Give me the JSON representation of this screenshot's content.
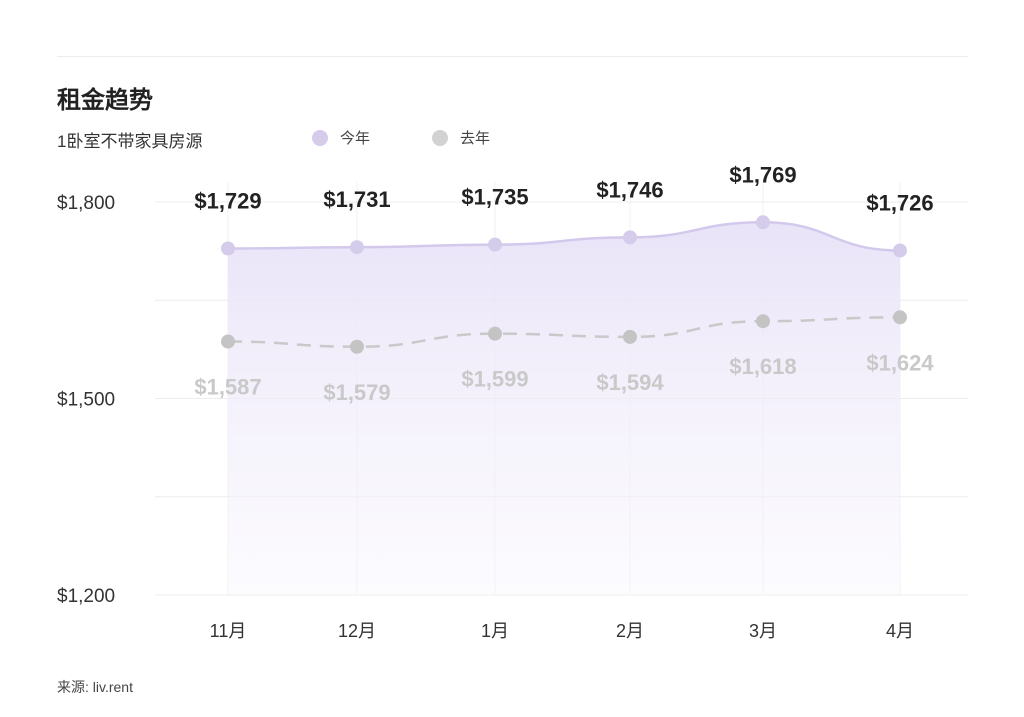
{
  "chart_data": {
    "type": "line",
    "title": "租金趋势",
    "subtitle": "1卧室不带家具房源",
    "categories": [
      "11月",
      "12月",
      "1月",
      "2月",
      "3月",
      "4月"
    ],
    "series": [
      {
        "name": "今年",
        "values": [
          1729,
          1731,
          1735,
          1746,
          1769,
          1726
        ],
        "labels": [
          "$1,729",
          "$1,731",
          "$1,735",
          "$1,746",
          "$1,769",
          "$1,726"
        ],
        "color": "#d5cbeb",
        "style": "solid",
        "fill": true
      },
      {
        "name": "去年",
        "values": [
          1587,
          1579,
          1599,
          1594,
          1618,
          1624
        ],
        "labels": [
          "$1,587",
          "$1,579",
          "$1,599",
          "$1,594",
          "$1,618",
          "$1,624"
        ],
        "color": "#c6c6c6",
        "style": "dashed",
        "fill": false
      }
    ],
    "ylim": [
      1200,
      1800
    ],
    "yticks": [
      1200,
      1500,
      1800
    ],
    "ytick_labels": [
      "$1,200",
      "$1,500",
      "$1,800"
    ],
    "grid": true,
    "legend_placement": "top"
  },
  "source": "来源: liv.rent"
}
